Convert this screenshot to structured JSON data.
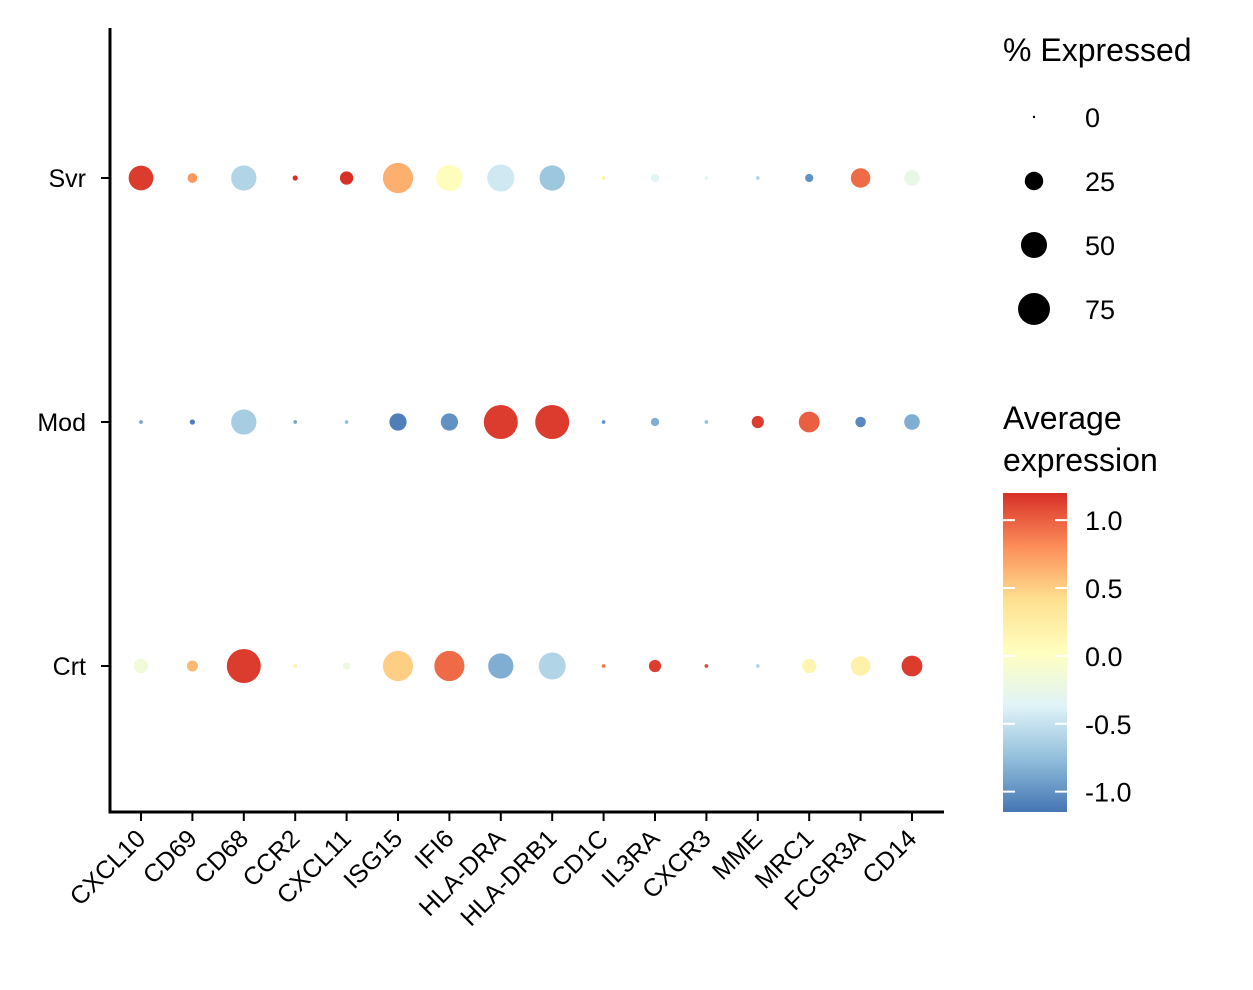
{
  "chart_data": {
    "type": "dotplot",
    "x_categories": [
      "CXCL10",
      "CD69",
      "CD68",
      "CCR2",
      "CXCL11",
      "ISG15",
      "IFI6",
      "HLA-DRA",
      "HLA-DRB1",
      "CD1C",
      "IL3RA",
      "CXCR3",
      "MME",
      "MRC1",
      "FCGR3A",
      "CD14"
    ],
    "y_categories": [
      "Svr",
      "Mod",
      "Crt"
    ],
    "series": [
      {
        "name": "Svr",
        "pct_expressed": [
          45,
          7,
          47,
          2,
          13,
          67,
          51,
          54,
          47,
          1,
          5,
          1,
          1,
          5,
          28,
          18
        ],
        "avg_expression": [
          1.15,
          0.75,
          -0.6,
          1.2,
          1.2,
          0.65,
          0.05,
          -0.45,
          -0.7,
          0.2,
          -0.35,
          -0.3,
          -0.6,
          -1.0,
          0.95,
          -0.25
        ]
      },
      {
        "name": "Mod",
        "pct_expressed": [
          1,
          2,
          47,
          1,
          1,
          22,
          22,
          85,
          85,
          1,
          5,
          1,
          11,
          32,
          8,
          18
        ],
        "avg_expression": [
          -0.9,
          -1.1,
          -0.65,
          -0.9,
          -0.75,
          -1.1,
          -1.0,
          1.15,
          1.15,
          -1.0,
          -0.85,
          -0.75,
          1.15,
          1.0,
          -1.05,
          -0.85
        ]
      },
      {
        "name": "Crt",
        "pct_expressed": [
          15,
          9,
          85,
          1,
          4,
          67,
          67,
          47,
          54,
          1,
          11,
          1,
          1,
          15,
          28,
          32
        ],
        "avg_expression": [
          -0.15,
          0.6,
          1.15,
          0.2,
          -0.2,
          0.5,
          0.95,
          -0.85,
          -0.6,
          0.9,
          1.15,
          1.1,
          -0.6,
          0.15,
          0.2,
          1.15
        ]
      }
    ],
    "size_legend": {
      "title": "% Expressed",
      "values": [
        0,
        25,
        50,
        75
      ],
      "labels": [
        "0",
        "25",
        "50",
        "75"
      ]
    },
    "color_legend": {
      "title_line1": "Average",
      "title_line2": "expression",
      "range": [
        -1.15,
        1.2
      ],
      "ticks": [
        1.0,
        0.5,
        0.0,
        -0.5,
        -1.0
      ],
      "tick_labels": [
        "1.0",
        "0.5",
        "0.0",
        "-0.5",
        "-1.0"
      ],
      "colormap": [
        "#4575b4",
        "#91bfdb",
        "#e0f3f8",
        "#ffffbf",
        "#fee090",
        "#fc8d59",
        "#d73027"
      ]
    },
    "grid": false
  }
}
